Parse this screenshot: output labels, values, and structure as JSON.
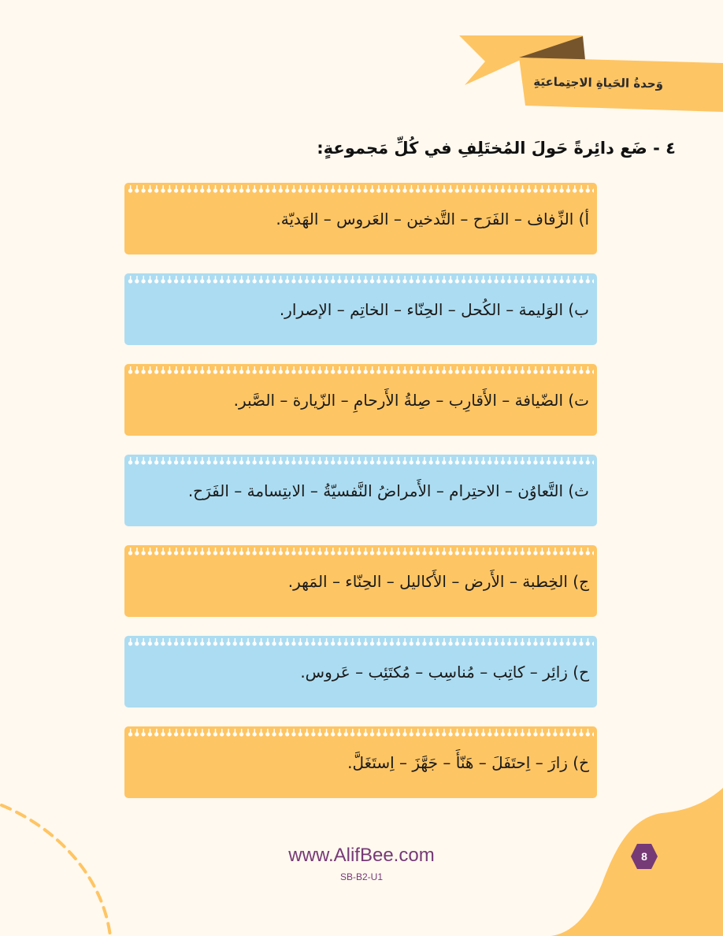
{
  "header": {
    "unit_title": "وَحدةُ الحَياةِ الاجتِماعيَةِ"
  },
  "question": {
    "title": "٤ - ضَع دائِرةً حَولَ المُختَلِفِ في كُلِّ مَجموعةٍ:"
  },
  "groups": [
    {
      "text": "أ) الزِّفاف – الفَرَح – التَّدخين – العَروس – الهَديّة.",
      "color": "orange"
    },
    {
      "text": "ب) الوَليمة – الكُحل – الحِنّاء – الخاتِم – الإصرار.",
      "color": "blue"
    },
    {
      "text": "ت) الضّيافة – الأَقارِب – صِلةُ الأَرحامِ – الزّيارة – الصَّبر.",
      "color": "orange"
    },
    {
      "text": "ث) التَّعاوُن – الاحتِرام – الأَمراضُ النَّفسيّةُ – الابتِسامة – الفَرَح.",
      "color": "blue"
    },
    {
      "text": "ج) الخِطبة – الأَرض – الأَكاليل – الحِنّاء – المَهر.",
      "color": "orange"
    },
    {
      "text": "ح) زائِر – كاتِب – مُناسِب – مُكتَئِب – عَروس.",
      "color": "blue"
    },
    {
      "text": "خ) زارَ – اِحتَفَلَ – هَنّأَ – جَهَّزَ – اِستَغَلَّ.",
      "color": "orange"
    }
  ],
  "footer": {
    "website": "www.AlifBee.com",
    "code": "SB-B2-U1",
    "page_number": "8"
  },
  "colors": {
    "orange": "#fec564",
    "blue": "#acdcf1",
    "purple": "#763a76",
    "background": "#fff9ef",
    "ribbon_fold": "#76552d"
  }
}
